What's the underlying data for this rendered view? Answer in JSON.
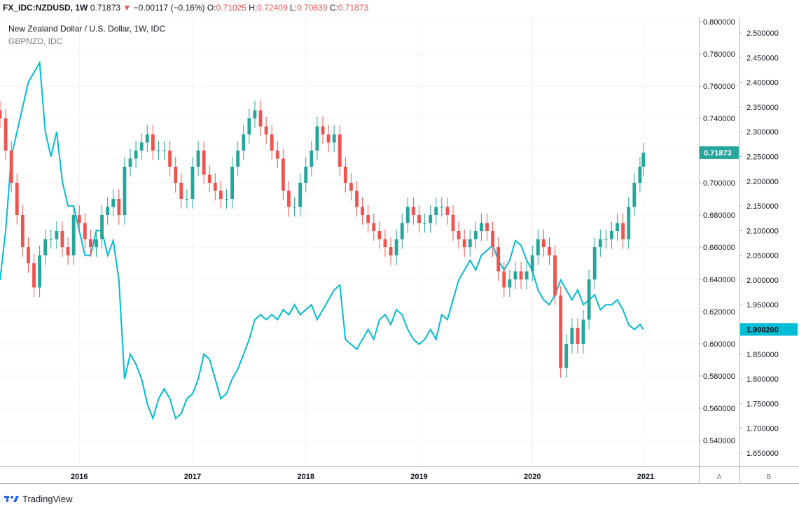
{
  "header": {
    "symbol": "FX_IDC:NZDUSD, 1W",
    "last": "0.71873",
    "change": "−0.00117 (−0.16%)",
    "o_label": "O:",
    "o_value": "0.71025",
    "h_label": "H:",
    "h_value": "0.72409",
    "l_label": "L:",
    "l_value": "0.70839",
    "c_label": "C:",
    "c_value": "0.71873"
  },
  "legend": {
    "main": "New Zealand Dollar / U.S. Dollar, 1W, IDC",
    "overlay": "GBPNZD, IDC"
  },
  "scale_labels": {
    "a": "A",
    "b": "B"
  },
  "branding": {
    "name": "TradingView"
  },
  "colors": {
    "up": "#26a69a",
    "down": "#ef5350",
    "overlay": "#00bcd4",
    "grid": "#f0f3fa",
    "axis_line": "#b2b5be",
    "nzd_badge": "#26a69a",
    "gbp_badge": "#00bcd4"
  },
  "chart_data": {
    "type": "line",
    "x_ticks": [
      "2016",
      "2017",
      "2018",
      "2019",
      "2020",
      "2021"
    ],
    "x_tick_years": [
      2016,
      2017,
      2018,
      2019,
      2020,
      2021
    ],
    "x_range": [
      2015.3,
      2021.47
    ],
    "axis_a": {
      "ticks": [
        "0.800000",
        "0.780000",
        "0.760000",
        "0.740000",
        "0.720000",
        "0.700000",
        "0.680000",
        "0.660000",
        "0.640000",
        "0.620000",
        "0.600000",
        "0.580000",
        "0.560000",
        "0.540000"
      ],
      "range": [
        0.535,
        0.8
      ],
      "current_label": "0.71873",
      "current_value": 0.71873
    },
    "axis_b": {
      "ticks": [
        "2.500000",
        "2.450000",
        "2.400000",
        "2.350000",
        "2.300000",
        "2.250000",
        "2.200000",
        "2.150000",
        "2.100000",
        "2.050000",
        "2.000000",
        "1.950000",
        "1.900000",
        "1.850000",
        "1.800000",
        "1.750000",
        "1.700000",
        "1.650000"
      ],
      "range": [
        1.625,
        2.53
      ],
      "current_label": "1.900200",
      "current_value": 1.9002
    },
    "series": [
      {
        "name": "New Zealand Dollar / U.S. Dollar, 1W, IDC",
        "kind": "candlestick",
        "axis": "A",
        "x": [
          2015.3,
          2015.35,
          2015.4,
          2015.45,
          2015.5,
          2015.55,
          2015.6,
          2015.65,
          2015.7,
          2015.75,
          2015.8,
          2015.85,
          2015.9,
          2015.95,
          2016.0,
          2016.05,
          2016.1,
          2016.15,
          2016.2,
          2016.25,
          2016.3,
          2016.35,
          2016.4,
          2016.45,
          2016.5,
          2016.55,
          2016.6,
          2016.65,
          2016.7,
          2016.75,
          2016.8,
          2016.85,
          2016.9,
          2016.95,
          2017.0,
          2017.05,
          2017.1,
          2017.15,
          2017.2,
          2017.25,
          2017.3,
          2017.35,
          2017.4,
          2017.45,
          2017.5,
          2017.55,
          2017.6,
          2017.65,
          2017.7,
          2017.75,
          2017.8,
          2017.85,
          2017.9,
          2017.95,
          2018.0,
          2018.05,
          2018.1,
          2018.15,
          2018.2,
          2018.25,
          2018.3,
          2018.35,
          2018.4,
          2018.45,
          2018.5,
          2018.55,
          2018.6,
          2018.65,
          2018.7,
          2018.75,
          2018.8,
          2018.85,
          2018.9,
          2018.95,
          2019.0,
          2019.05,
          2019.1,
          2019.15,
          2019.2,
          2019.25,
          2019.3,
          2019.35,
          2019.4,
          2019.45,
          2019.5,
          2019.55,
          2019.6,
          2019.65,
          2019.7,
          2019.75,
          2019.8,
          2019.85,
          2019.9,
          2019.95,
          2020.0,
          2020.05,
          2020.1,
          2020.15,
          2020.2,
          2020.25,
          2020.3,
          2020.35,
          2020.4,
          2020.45,
          2020.5,
          2020.55,
          2020.6,
          2020.65,
          2020.7,
          2020.75,
          2020.8,
          2020.85,
          2020.9,
          2020.95,
          2020.98
        ],
        "close": [
          0.74,
          0.72,
          0.7,
          0.68,
          0.66,
          0.65,
          0.635,
          0.655,
          0.665,
          0.665,
          0.67,
          0.66,
          0.655,
          0.68,
          0.675,
          0.665,
          0.66,
          0.665,
          0.68,
          0.685,
          0.69,
          0.68,
          0.71,
          0.715,
          0.72,
          0.725,
          0.73,
          0.72,
          0.72,
          0.72,
          0.71,
          0.7,
          0.69,
          0.69,
          0.71,
          0.72,
          0.705,
          0.7,
          0.695,
          0.69,
          0.69,
          0.71,
          0.72,
          0.73,
          0.74,
          0.745,
          0.735,
          0.73,
          0.72,
          0.715,
          0.695,
          0.685,
          0.685,
          0.7,
          0.71,
          0.72,
          0.735,
          0.73,
          0.725,
          0.73,
          0.71,
          0.7,
          0.695,
          0.685,
          0.68,
          0.675,
          0.67,
          0.665,
          0.66,
          0.655,
          0.665,
          0.675,
          0.685,
          0.68,
          0.675,
          0.675,
          0.68,
          0.685,
          0.685,
          0.68,
          0.67,
          0.665,
          0.66,
          0.665,
          0.67,
          0.675,
          0.67,
          0.66,
          0.645,
          0.635,
          0.64,
          0.645,
          0.64,
          0.645,
          0.655,
          0.665,
          0.66,
          0.655,
          0.63,
          0.585,
          0.6,
          0.61,
          0.6,
          0.615,
          0.64,
          0.66,
          0.665,
          0.665,
          0.67,
          0.675,
          0.665,
          0.685,
          0.7,
          0.71,
          0.71873
        ]
      },
      {
        "name": "GBPNZD, IDC",
        "kind": "line",
        "axis": "B",
        "x": [
          2015.3,
          2015.35,
          2015.4,
          2015.45,
          2015.5,
          2015.55,
          2015.6,
          2015.65,
          2015.7,
          2015.75,
          2015.8,
          2015.85,
          2015.9,
          2015.95,
          2016.0,
          2016.05,
          2016.1,
          2016.15,
          2016.2,
          2016.25,
          2016.3,
          2016.35,
          2016.4,
          2016.45,
          2016.5,
          2016.55,
          2016.6,
          2016.65,
          2016.7,
          2016.75,
          2016.8,
          2016.85,
          2016.9,
          2016.95,
          2017.0,
          2017.05,
          2017.1,
          2017.15,
          2017.2,
          2017.25,
          2017.3,
          2017.35,
          2017.4,
          2017.45,
          2017.5,
          2017.55,
          2017.6,
          2017.65,
          2017.7,
          2017.75,
          2017.8,
          2017.85,
          2017.9,
          2017.95,
          2018.0,
          2018.05,
          2018.1,
          2018.15,
          2018.2,
          2018.25,
          2018.3,
          2018.35,
          2018.4,
          2018.45,
          2018.5,
          2018.55,
          2018.6,
          2018.65,
          2018.7,
          2018.75,
          2018.8,
          2018.85,
          2018.9,
          2018.95,
          2019.0,
          2019.05,
          2019.1,
          2019.15,
          2019.2,
          2019.25,
          2019.3,
          2019.35,
          2019.4,
          2019.45,
          2019.5,
          2019.55,
          2019.6,
          2019.65,
          2019.7,
          2019.75,
          2019.8,
          2019.85,
          2019.9,
          2019.95,
          2020.0,
          2020.05,
          2020.1,
          2020.15,
          2020.2,
          2020.25,
          2020.3,
          2020.35,
          2020.4,
          2020.45,
          2020.5,
          2020.55,
          2020.6,
          2020.65,
          2020.7,
          2020.75,
          2020.8,
          2020.85,
          2020.9,
          2020.95,
          2020.98
        ],
        "values": [
          2.0,
          2.1,
          2.25,
          2.3,
          2.35,
          2.4,
          2.42,
          2.44,
          2.3,
          2.25,
          2.3,
          2.2,
          2.15,
          2.15,
          2.1,
          2.05,
          2.05,
          2.1,
          2.1,
          2.05,
          2.08,
          2.0,
          1.8,
          1.85,
          1.83,
          1.8,
          1.75,
          1.72,
          1.76,
          1.78,
          1.76,
          1.72,
          1.73,
          1.76,
          1.77,
          1.8,
          1.85,
          1.84,
          1.8,
          1.76,
          1.77,
          1.8,
          1.82,
          1.85,
          1.88,
          1.92,
          1.93,
          1.92,
          1.93,
          1.92,
          1.94,
          1.93,
          1.95,
          1.93,
          1.94,
          1.95,
          1.92,
          1.94,
          1.96,
          1.98,
          1.99,
          1.88,
          1.87,
          1.86,
          1.88,
          1.9,
          1.88,
          1.92,
          1.93,
          1.91,
          1.94,
          1.93,
          1.9,
          1.88,
          1.87,
          1.88,
          1.9,
          1.88,
          1.93,
          1.92,
          1.96,
          2.0,
          2.02,
          2.04,
          2.02,
          2.05,
          2.06,
          2.07,
          2.04,
          2.02,
          2.04,
          2.08,
          2.07,
          2.04,
          2.02,
          1.98,
          1.96,
          1.95,
          1.97,
          2.0,
          1.98,
          1.96,
          1.98,
          1.95,
          1.96,
          1.97,
          1.94,
          1.95,
          1.95,
          1.96,
          1.94,
          1.91,
          1.9,
          1.91,
          1.9
        ]
      }
    ]
  }
}
